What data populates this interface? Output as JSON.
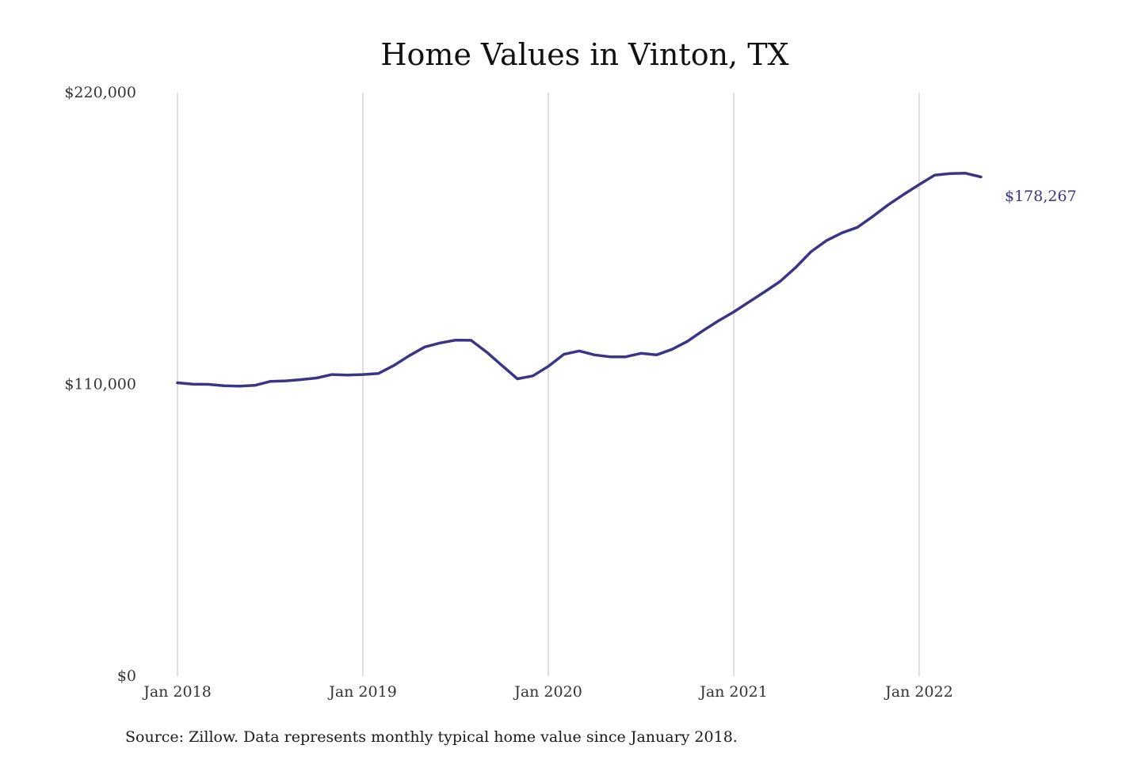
{
  "chart_data": {
    "type": "line",
    "title": "Home Values in Vinton, TX",
    "xlabel": "",
    "ylabel": "",
    "ylim": [
      0,
      220000
    ],
    "y_ticks": [
      {
        "value": 0,
        "label": "$0"
      },
      {
        "value": 110000,
        "label": "$110,000"
      },
      {
        "value": 220000,
        "label": "$220,000"
      }
    ],
    "x_ticks": [
      {
        "value": "2018-01",
        "label": "Jan 2018"
      },
      {
        "value": "2019-01",
        "label": "Jan 2019"
      },
      {
        "value": "2020-01",
        "label": "Jan 2020"
      },
      {
        "value": "2021-01",
        "label": "Jan 2021"
      },
      {
        "value": "2022-01",
        "label": "Jan 2022"
      }
    ],
    "grid": {
      "vertical": true,
      "horizontal": false
    },
    "legend": "none",
    "line_color": "#3a3585",
    "series": [
      {
        "x": [
          "2018-01",
          "2018-02",
          "2018-03",
          "2018-04",
          "2018-05",
          "2018-06",
          "2018-07",
          "2018-08",
          "2018-09",
          "2018-10",
          "2018-11",
          "2018-12",
          "2019-01",
          "2019-02",
          "2019-03",
          "2019-04",
          "2019-05",
          "2019-06",
          "2019-07",
          "2019-08",
          "2019-09",
          "2019-10",
          "2019-11",
          "2019-12",
          "2020-01",
          "2020-02",
          "2020-03",
          "2020-04",
          "2020-05",
          "2020-06",
          "2020-07",
          "2020-08",
          "2020-09",
          "2020-10",
          "2020-11",
          "2020-12",
          "2021-01",
          "2021-02",
          "2021-03",
          "2021-04",
          "2021-05",
          "2021-06",
          "2021-07",
          "2021-08",
          "2021-09",
          "2021-10",
          "2021-11",
          "2021-12",
          "2022-01",
          "2022-02",
          "2022-03",
          "2022-04",
          "2022-05"
        ],
        "values": [
          110600,
          110100,
          110000,
          109500,
          109300,
          109600,
          111100,
          111300,
          111800,
          112400,
          113700,
          113500,
          113700,
          114100,
          117100,
          120800,
          124100,
          125600,
          126700,
          126600,
          122200,
          117100,
          112100,
          113200,
          116800,
          121300,
          122600,
          121100,
          120400,
          120400,
          121700,
          121100,
          123200,
          126200,
          130200,
          133900,
          137300,
          141100,
          144900,
          148800,
          154000,
          160000,
          164200,
          167100,
          169200,
          173300,
          177700,
          181600,
          185300,
          188900,
          189500,
          189600,
          188200
        ]
      }
    ],
    "annotation": "$178,267"
  },
  "footer": {
    "source": "Source: Zillow. Data represents monthly typical home value since January 2018."
  }
}
